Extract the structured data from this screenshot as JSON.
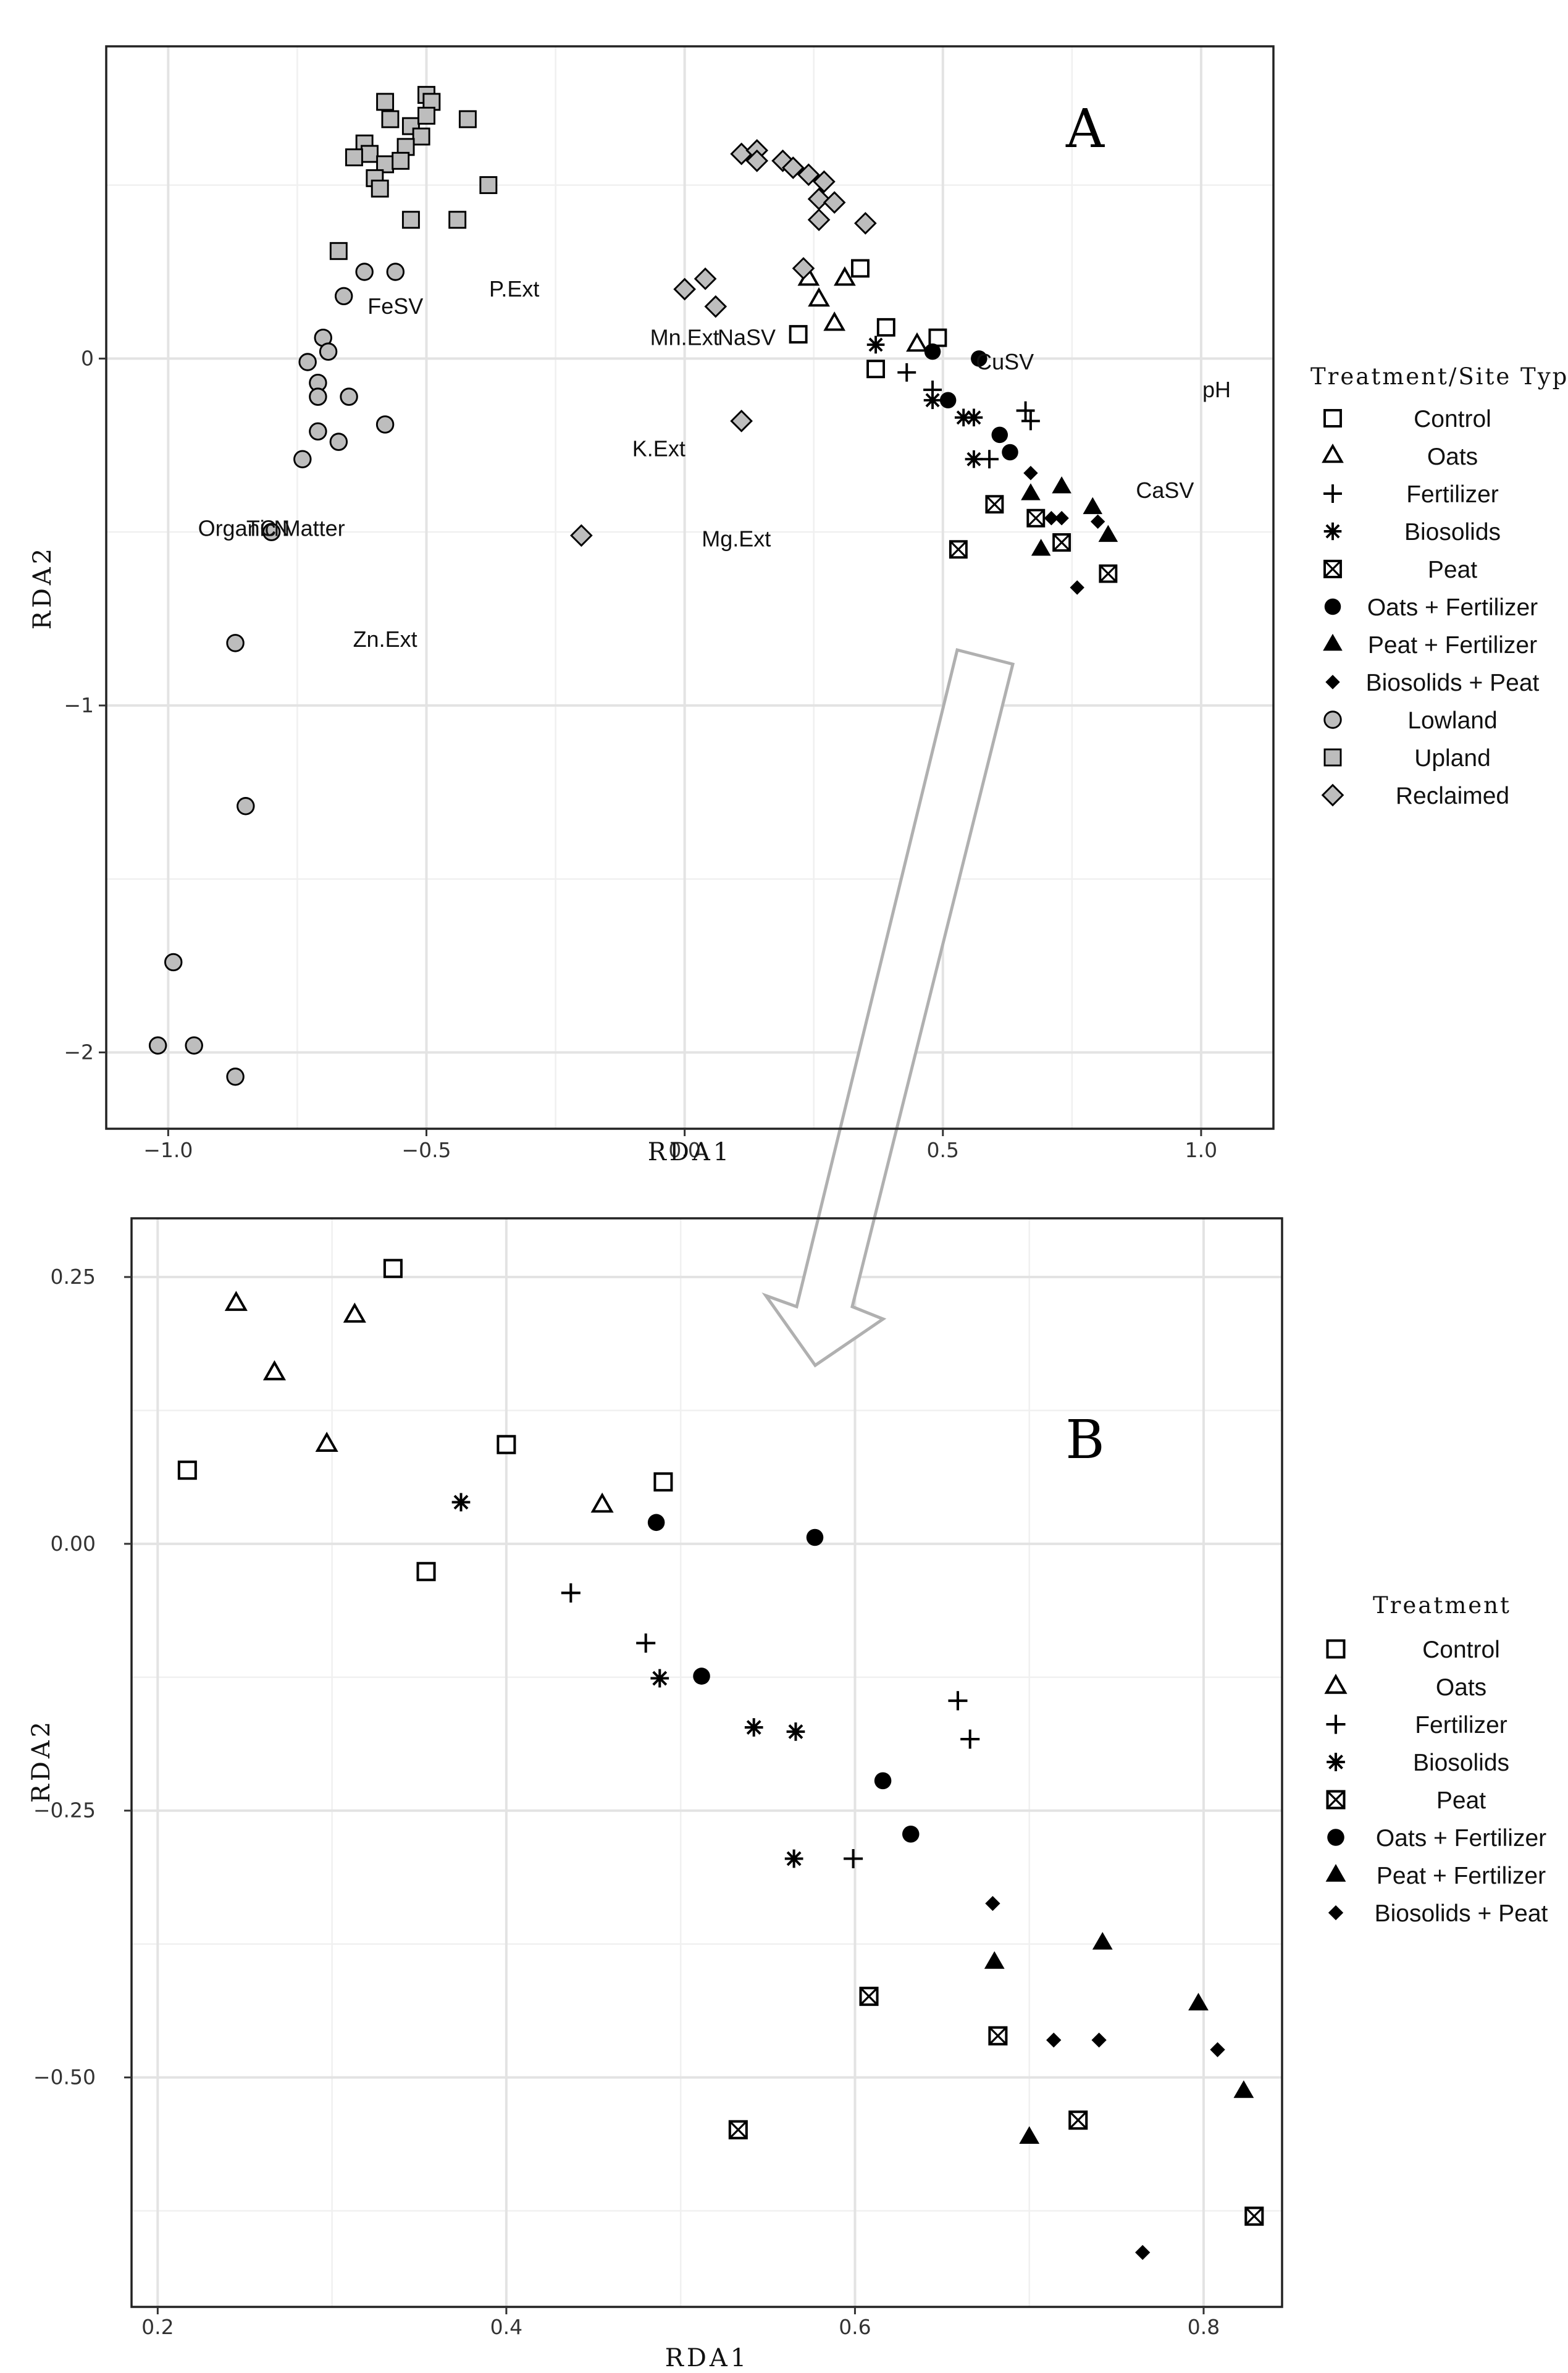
{
  "chart_data": [
    {
      "type": "scatter",
      "title": "",
      "panel_label": "A",
      "xlabel": "RDA1",
      "ylabel": "RDA2",
      "xlim": [
        -1.12,
        1.14
      ],
      "ylim": [
        -2.22,
        0.9
      ],
      "xticks": [
        -1.0,
        -0.5,
        0.0,
        0.5,
        1.0
      ],
      "xtick_labels": [
        "−1.0",
        "−0.5",
        "0.0",
        "0.5",
        "1.0"
      ],
      "yticks": [
        0,
        -1,
        -2
      ],
      "ytick_labels": [
        "0",
        "−1",
        "−2"
      ],
      "legend_title": "Treatment/Site Type",
      "legend": [
        "Control",
        "Oats",
        "Fertilizer",
        "Biosolids",
        "Peat",
        "Oats + Fertilizer",
        "Peat + Fertilizer",
        "Biosolids + Peat",
        "Lowland",
        "Upland",
        "Reclaimed"
      ],
      "variable_labels": [
        {
          "text": "FeSV",
          "x": -0.56,
          "y": 0.15
        },
        {
          "text": "P.Ext",
          "x": -0.33,
          "y": 0.2
        },
        {
          "text": "Mn.Ext",
          "x": 0.0,
          "y": 0.06
        },
        {
          "text": "NaSV",
          "x": 0.12,
          "y": 0.06
        },
        {
          "text": "CuSV",
          "x": 0.62,
          "y": -0.01
        },
        {
          "text": "pH",
          "x": 1.03,
          "y": -0.09
        },
        {
          "text": "K.Ext",
          "x": -0.05,
          "y": -0.26
        },
        {
          "text": "CaSV",
          "x": 0.93,
          "y": -0.38
        },
        {
          "text": "Organic Matter",
          "x": -0.8,
          "y": -0.49
        },
        {
          "text": "TC",
          "x": -0.82,
          "y": -0.49
        },
        {
          "text": "N",
          "x": -0.78,
          "y": -0.49
        },
        {
          "text": "Mg.Ext",
          "x": 0.1,
          "y": -0.52
        },
        {
          "text": "Zn.Ext",
          "x": -0.58,
          "y": -0.81
        }
      ],
      "series": [
        {
          "name": "Control",
          "marker": "square-open",
          "x": [
            0.34,
            0.39,
            0.49,
            0.37,
            0.22
          ],
          "y": [
            0.26,
            0.09,
            0.06,
            -0.03,
            0.07
          ]
        },
        {
          "name": "Oats",
          "marker": "triangle-open",
          "x": [
            0.24,
            0.26,
            0.31,
            0.29,
            0.45
          ],
          "y": [
            0.23,
            0.17,
            0.23,
            0.1,
            0.04
          ]
        },
        {
          "name": "Fertilizer",
          "marker": "plus",
          "x": [
            0.43,
            0.48,
            0.59,
            0.66,
            0.67
          ],
          "y": [
            -0.04,
            -0.09,
            -0.29,
            -0.15,
            -0.18
          ]
        },
        {
          "name": "Biosolids",
          "marker": "asterisk",
          "x": [
            0.37,
            0.48,
            0.54,
            0.56,
            0.56
          ],
          "y": [
            0.04,
            -0.12,
            -0.17,
            -0.17,
            -0.29
          ]
        },
        {
          "name": "Peat",
          "marker": "square-x",
          "x": [
            0.6,
            0.68,
            0.73,
            0.82,
            0.53
          ],
          "y": [
            -0.42,
            -0.46,
            -0.53,
            -0.62,
            -0.55
          ]
        },
        {
          "name": "Oats + Fertilizer",
          "marker": "circle-filled",
          "x": [
            0.48,
            0.57,
            0.51,
            0.61,
            0.63
          ],
          "y": [
            0.02,
            0.0,
            -0.12,
            -0.22,
            -0.27
          ]
        },
        {
          "name": "Peat + Fertilizer",
          "marker": "triangle-filled",
          "x": [
            0.67,
            0.73,
            0.79,
            0.82,
            0.69
          ],
          "y": [
            -0.39,
            -0.37,
            -0.43,
            -0.51,
            -0.55
          ]
        },
        {
          "name": "Biosolids + Peat",
          "marker": "diamond-filled",
          "x": [
            0.67,
            0.71,
            0.73,
            0.8,
            0.76
          ],
          "y": [
            -0.33,
            -0.46,
            -0.46,
            -0.47,
            -0.66
          ]
        },
        {
          "name": "Lowland",
          "marker": "circle-grey",
          "x": [
            -0.66,
            -0.56,
            -0.62,
            -0.7,
            -0.69,
            -0.73,
            -0.71,
            -0.71,
            -0.65,
            -0.58,
            -0.71,
            -0.67,
            -0.74,
            -0.8,
            -0.87,
            -0.85,
            -0.99,
            -1.02,
            -0.95,
            -0.87
          ],
          "y": [
            0.18,
            0.25,
            0.25,
            0.06,
            0.02,
            -0.01,
            -0.07,
            -0.11,
            -0.11,
            -0.19,
            -0.21,
            -0.24,
            -0.29,
            -0.5,
            -0.82,
            -1.29,
            -1.74,
            -1.98,
            -1.98,
            -2.07
          ]
        },
        {
          "name": "Upland",
          "marker": "square-grey",
          "x": [
            -0.58,
            -0.5,
            -0.49,
            -0.42,
            -0.57,
            -0.53,
            -0.5,
            -0.51,
            -0.62,
            -0.54,
            -0.61,
            -0.64,
            -0.58,
            -0.55,
            -0.6,
            -0.59,
            -0.38,
            -0.53,
            -0.44,
            -0.67
          ],
          "y": [
            0.74,
            0.76,
            0.74,
            0.69,
            0.69,
            0.67,
            0.7,
            0.64,
            0.62,
            0.61,
            0.59,
            0.58,
            0.56,
            0.57,
            0.52,
            0.49,
            0.5,
            0.4,
            0.4,
            0.31
          ]
        },
        {
          "name": "Reclaimed",
          "marker": "diamond-grey",
          "x": [
            0.11,
            0.14,
            0.14,
            0.19,
            0.21,
            0.24,
            0.27,
            0.26,
            0.29,
            0.26,
            0.35,
            0.23,
            0.04,
            0.06,
            0.0,
            0.11,
            -0.2
          ],
          "y": [
            0.59,
            0.6,
            0.57,
            0.57,
            0.55,
            0.53,
            0.51,
            0.46,
            0.45,
            0.4,
            0.39,
            0.26,
            0.23,
            0.15,
            0.2,
            -0.18,
            -0.51
          ]
        }
      ]
    },
    {
      "type": "scatter",
      "title": "",
      "panel_label": "B",
      "xlabel": "RDA1",
      "ylabel": "RDA2",
      "xlim": [
        0.185,
        0.845
      ],
      "ylim": [
        -0.715,
        0.305
      ],
      "xticks": [
        0.2,
        0.4,
        0.6,
        0.8
      ],
      "xtick_labels": [
        "0.2",
        "0.4",
        "0.6",
        "0.8"
      ],
      "yticks": [
        0.25,
        0.0,
        -0.25,
        -0.5
      ],
      "ytick_labels": [
        "0.25",
        "0.00",
        "−0.25",
        "−0.50"
      ],
      "legend_title": "Treatment",
      "legend": [
        "Control",
        "Oats",
        "Fertilizer",
        "Biosolids",
        "Peat",
        "Oats + Fertilizer",
        "Peat + Fertilizer",
        "Biosolids + Peat"
      ],
      "series": [
        {
          "name": "Control",
          "marker": "square-open",
          "x": [
            0.335,
            0.217,
            0.4,
            0.49,
            0.354
          ],
          "y": [
            0.258,
            0.069,
            0.093,
            0.058,
            -0.026
          ]
        },
        {
          "name": "Oats",
          "marker": "triangle-open",
          "x": [
            0.245,
            0.313,
            0.267,
            0.297,
            0.455
          ],
          "y": [
            0.225,
            0.214,
            0.16,
            0.093,
            0.036
          ]
        },
        {
          "name": "Fertilizer",
          "marker": "plus",
          "x": [
            0.437,
            0.48,
            0.599,
            0.659,
            0.666
          ],
          "y": [
            -0.046,
            -0.093,
            -0.295,
            -0.147,
            -0.183
          ]
        },
        {
          "name": "Biosolids",
          "marker": "asterisk",
          "x": [
            0.374,
            0.488,
            0.542,
            0.566,
            0.565
          ],
          "y": [
            0.039,
            -0.126,
            -0.172,
            -0.176,
            -0.295
          ]
        },
        {
          "name": "Peat",
          "marker": "square-x",
          "x": [
            0.608,
            0.682,
            0.728,
            0.829,
            0.533
          ],
          "y": [
            -0.424,
            -0.461,
            -0.54,
            -0.63,
            -0.549
          ]
        },
        {
          "name": "Oats + Fertilizer",
          "marker": "circle-filled",
          "x": [
            0.486,
            0.577,
            0.512,
            0.616,
            0.632
          ],
          "y": [
            0.02,
            0.006,
            -0.124,
            -0.222,
            -0.272
          ]
        },
        {
          "name": "Peat + Fertilizer",
          "marker": "triangle-filled",
          "x": [
            0.68,
            0.742,
            0.797,
            0.823,
            0.7
          ],
          "y": [
            -0.392,
            -0.374,
            -0.431,
            -0.513,
            -0.556
          ]
        },
        {
          "name": "Biosolids + Peat",
          "marker": "diamond-filled",
          "x": [
            0.679,
            0.714,
            0.74,
            0.808,
            0.765
          ],
          "y": [
            -0.337,
            -0.465,
            -0.465,
            -0.474,
            -0.664
          ]
        }
      ]
    }
  ]
}
